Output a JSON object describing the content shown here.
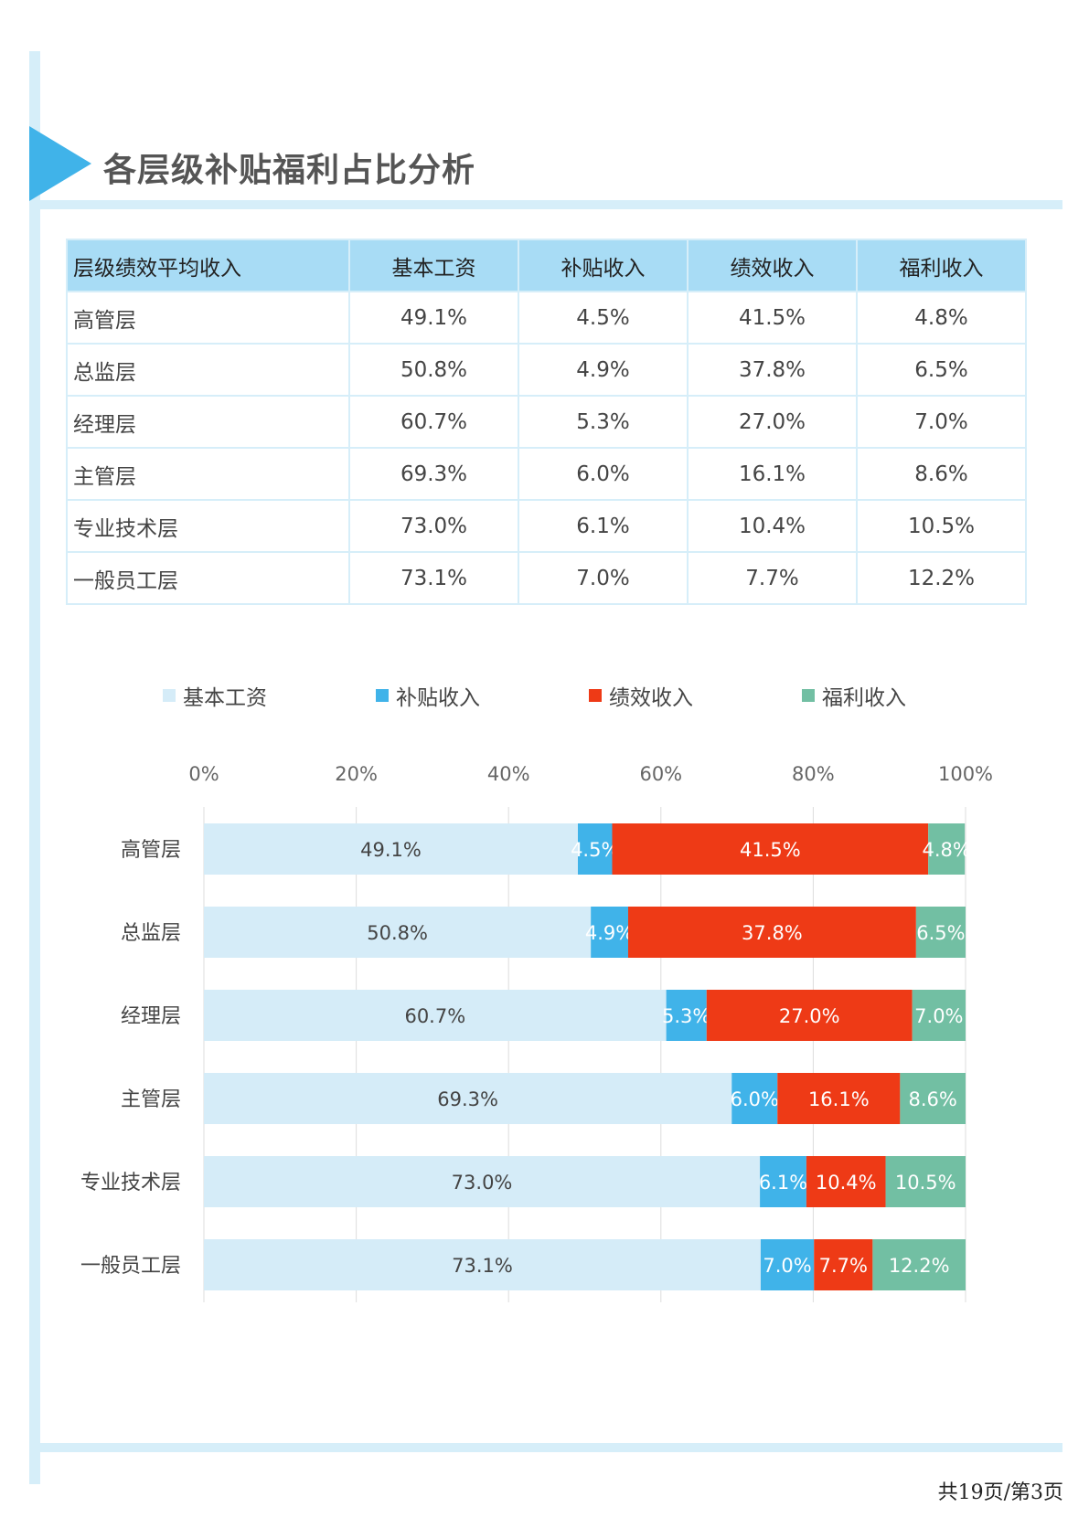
{
  "title": "各层级补贴福利占比分析",
  "colors": {
    "base": "#d5ecf8",
    "subsidy": "#40b3e9",
    "performance": "#ee3a16",
    "welfare": "#72bfa3",
    "frame": "#d6eef9",
    "header": "#a8dcf5",
    "accent": "#40b3e9"
  },
  "table": {
    "headers": [
      "层级绩效平均收入",
      "基本工资",
      "补贴收入",
      "绩效收入",
      "福利收入"
    ],
    "rows": [
      [
        "高管层",
        "49.1%",
        "4.5%",
        "41.5%",
        "4.8%"
      ],
      [
        "总监层",
        "50.8%",
        "4.9%",
        "37.8%",
        "6.5%"
      ],
      [
        "经理层",
        "60.7%",
        "5.3%",
        "27.0%",
        "7.0%"
      ],
      [
        "主管层",
        "69.3%",
        "6.0%",
        "16.1%",
        "8.6%"
      ],
      [
        "专业技术层",
        "73.0%",
        "6.1%",
        "10.4%",
        "10.5%"
      ],
      [
        "一般员工层",
        "73.1%",
        "7.0%",
        "7.7%",
        "12.2%"
      ]
    ]
  },
  "chart_data": {
    "type": "bar",
    "orientation": "horizontal",
    "stacked": true,
    "categories": [
      "高管层",
      "总监层",
      "经理层",
      "主管层",
      "专业技术层",
      "一般员工层"
    ],
    "series": [
      {
        "name": "基本工资",
        "values": [
          49.1,
          50.8,
          60.7,
          69.3,
          73.0,
          73.1
        ]
      },
      {
        "name": "补贴收入",
        "values": [
          4.5,
          4.9,
          5.3,
          6.0,
          6.1,
          7.0
        ]
      },
      {
        "name": "绩效收入",
        "values": [
          41.5,
          37.8,
          27.0,
          16.1,
          10.4,
          7.7
        ]
      },
      {
        "name": "福利收入",
        "values": [
          4.8,
          6.5,
          7.0,
          8.6,
          10.5,
          12.2
        ]
      }
    ],
    "xlim": [
      0,
      100
    ],
    "xticks": [
      "0%",
      "20%",
      "40%",
      "60%",
      "80%",
      "100%"
    ],
    "axis_position": "top",
    "legend_position": "top",
    "grid": true
  },
  "footer": "共19页/第3页"
}
